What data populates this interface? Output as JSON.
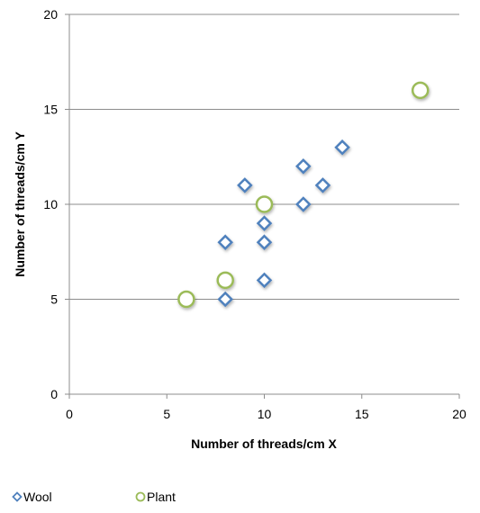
{
  "chart_data": {
    "type": "scatter",
    "xlabel": "Number of threads/cm X",
    "ylabel": "Number of threads/cm Y",
    "xlim": [
      0,
      20
    ],
    "ylim": [
      0,
      20
    ],
    "xticks": [
      0,
      5,
      10,
      15,
      20
    ],
    "yticks": [
      0,
      5,
      10,
      15,
      20
    ],
    "grid": "horizontal",
    "legend_position": "bottom-left",
    "series": [
      {
        "name": "Wool",
        "marker": "diamond",
        "color": "#4F81BD",
        "points": [
          {
            "x": 8,
            "y": 5
          },
          {
            "x": 8,
            "y": 8
          },
          {
            "x": 9,
            "y": 11
          },
          {
            "x": 10,
            "y": 6
          },
          {
            "x": 10,
            "y": 8
          },
          {
            "x": 10,
            "y": 9
          },
          {
            "x": 12,
            "y": 10
          },
          {
            "x": 12,
            "y": 12
          },
          {
            "x": 13,
            "y": 11
          },
          {
            "x": 14,
            "y": 13
          }
        ]
      },
      {
        "name": "Plant",
        "marker": "circle",
        "color": "#9BBB59",
        "points": [
          {
            "x": 6,
            "y": 5
          },
          {
            "x": 8,
            "y": 6
          },
          {
            "x": 10,
            "y": 10
          },
          {
            "x": 18,
            "y": 16
          }
        ]
      }
    ]
  }
}
